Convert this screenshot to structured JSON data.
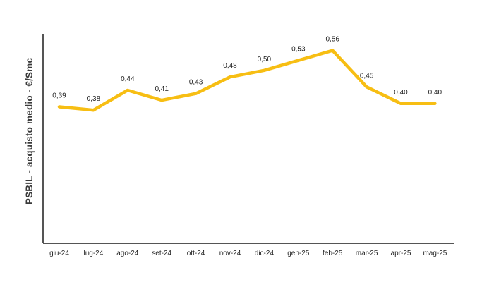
{
  "chart_data": {
    "type": "line",
    "ylabel": "PSBIL - acquisto medio - €/Smc",
    "xlabel": "",
    "categories": [
      "giu-24",
      "lug-24",
      "ago-24",
      "set-24",
      "ott-24",
      "nov-24",
      "dic-24",
      "gen-25",
      "feb-25",
      "mar-25",
      "apr-25",
      "mag-25"
    ],
    "series": [
      {
        "values": [
          0.39,
          0.38,
          0.44,
          0.41,
          0.43,
          0.48,
          0.5,
          0.53,
          0.56,
          0.45,
          0.4,
          0.4
        ],
        "labels": [
          "0,39",
          "0,38",
          "0,44",
          "0,41",
          "0,43",
          "0,48",
          "0,50",
          "0,53",
          "0,56",
          "0,45",
          "0,40",
          "0,40"
        ],
        "color": "#F7BE13"
      }
    ],
    "ylim": [
      0,
      0.62
    ],
    "grid": false,
    "axis_color": "#555555"
  }
}
